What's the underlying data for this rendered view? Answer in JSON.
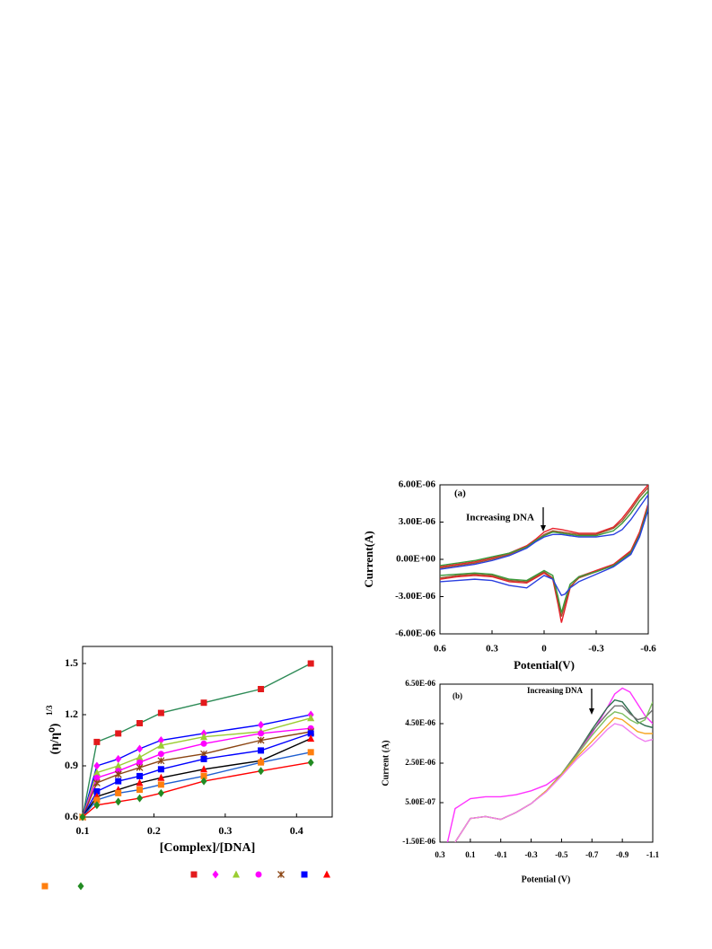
{
  "chart_data": [
    {
      "type": "line",
      "x_label": "[Complex]/[DNA]",
      "y_label": "(η/η⁰)",
      "y_label_exponent": "1/3",
      "x": [
        0.1,
        0.12,
        0.15,
        0.18,
        0.21,
        0.27,
        0.35,
        0.42
      ],
      "xlim": [
        0.1,
        0.45
      ],
      "ylim": [
        0.6,
        1.6
      ],
      "xticks": [
        0.1,
        0.2,
        0.3,
        0.4
      ],
      "yticks": [
        0.6,
        0.9,
        1.2,
        1.5
      ],
      "legend": true,
      "series": [
        {
          "marker": "square",
          "color": "#e31a1c",
          "line_color": "#2e8b57",
          "values": [
            0.6,
            1.04,
            1.09,
            1.15,
            1.21,
            1.27,
            1.35,
            1.5
          ]
        },
        {
          "marker": "diamond",
          "color": "#ff00ff",
          "line_color": "#0000ff",
          "values": [
            0.6,
            0.9,
            0.94,
            1.0,
            1.05,
            1.09,
            1.14,
            1.2
          ]
        },
        {
          "marker": "triangle",
          "color": "#9acd32",
          "line_color": "#9acd32",
          "values": [
            0.6,
            0.86,
            0.9,
            0.95,
            1.02,
            1.07,
            1.1,
            1.18
          ]
        },
        {
          "marker": "circle",
          "color": "#ff00ff",
          "line_color": "#ff00ff",
          "values": [
            0.6,
            0.83,
            0.87,
            0.92,
            0.97,
            1.03,
            1.09,
            1.12
          ]
        },
        {
          "marker": "asterisk",
          "color": "#8b4513",
          "line_color": "#8b4513",
          "values": [
            0.6,
            0.8,
            0.85,
            0.89,
            0.93,
            0.97,
            1.05,
            1.1
          ]
        },
        {
          "marker": "square",
          "color": "#0000ff",
          "line_color": "#0000ff",
          "values": [
            0.6,
            0.75,
            0.81,
            0.84,
            0.88,
            0.94,
            0.99,
            1.09
          ]
        },
        {
          "marker": "triangle",
          "color": "#ff0000",
          "line_color": "#000000",
          "values": [
            0.6,
            0.72,
            0.76,
            0.8,
            0.83,
            0.88,
            0.93,
            1.06
          ]
        },
        {
          "marker": "square",
          "color": "#ff7f0e",
          "line_color": "#1f5fd0",
          "values": [
            0.6,
            0.7,
            0.74,
            0.76,
            0.79,
            0.84,
            0.92,
            0.98
          ]
        },
        {
          "marker": "diamond",
          "color": "#228b22",
          "line_color": "#ff0000",
          "values": [
            0.6,
            0.67,
            0.69,
            0.71,
            0.74,
            0.81,
            0.87,
            0.92
          ]
        }
      ]
    },
    {
      "type": "line",
      "panel_label": "(a)",
      "annotation": "Increasing DNA",
      "x_label": "Potential(V)",
      "y_label": "Current(A)",
      "x": [
        0.6,
        0.5,
        0.4,
        0.3,
        0.2,
        0.1,
        0.05,
        0,
        -0.05,
        -0.1,
        -0.2,
        -0.3,
        -0.4,
        -0.45,
        -0.5,
        -0.55,
        -0.6,
        -0.6,
        -0.55,
        -0.5,
        -0.4,
        -0.3,
        -0.2,
        -0.15,
        -0.12,
        -0.1,
        -0.08,
        -0.05,
        0,
        0.1,
        0.2,
        0.3,
        0.4,
        0.5,
        0.6
      ],
      "xlim": [
        0.6,
        -0.6
      ],
      "ylim": [
        -6e-06,
        6e-06
      ],
      "xticks": [
        0.6,
        0.3,
        0,
        -0.3,
        -0.6
      ],
      "yticks": [
        {
          "value": -6e-06,
          "label": "-6.00E-06"
        },
        {
          "value": -3e-06,
          "label": "-3.00E-06"
        },
        {
          "value": 0,
          "label": "0.00E+00"
        },
        {
          "value": 3e-06,
          "label": "3.00E-06"
        },
        {
          "value": 6e-06,
          "label": "6.00E-06"
        }
      ],
      "series": [
        {
          "color": "#e8202a",
          "values": [
            -6e-07,
            -4e-07,
            -2e-07,
            1e-07,
            5e-07,
            1.1e-06,
            1.6e-06,
            2.2e-06,
            2.5e-06,
            2.4e-06,
            2.1e-06,
            2.1e-06,
            2.6e-06,
            3.3e-06,
            4.2e-06,
            5.2e-06,
            6e-06,
            4.5e-06,
            2.2e-06,
            7e-07,
            -4e-07,
            -9e-07,
            -1.4e-06,
            -2.3e-06,
            -4e-06,
            -5.1e-06,
            -3.6e-06,
            -1.6e-06,
            -1.1e-06,
            -1.9e-06,
            -1.8e-06,
            -1.4e-06,
            -1.3e-06,
            -1.4e-06,
            -1.6e-06
          ]
        },
        {
          "color": "#a0522d",
          "values": [
            -7e-07,
            -5e-07,
            -3e-07,
            0,
            4e-07,
            1e-06,
            1.5e-06,
            2e-06,
            2.3e-06,
            2.2e-06,
            2e-06,
            2e-06,
            2.5e-06,
            3.1e-06,
            4e-06,
            5e-06,
            5.8e-06,
            4.3e-06,
            2e-06,
            6e-07,
            -5e-07,
            -1e-06,
            -1.5e-06,
            -2.2e-06,
            -3.6e-06,
            -4.6e-06,
            -3.3e-06,
            -1.5e-06,
            -1e-06,
            -1.8e-06,
            -1.7e-06,
            -1.3e-06,
            -1.2e-06,
            -1.3e-06,
            -1.5e-06
          ]
        },
        {
          "color": "#3a9a3a",
          "values": [
            -5e-07,
            -3e-07,
            -1e-07,
            2e-07,
            5e-07,
            1e-06,
            1.5e-06,
            1.9e-06,
            2.2e-06,
            2.1e-06,
            1.9e-06,
            1.9e-06,
            2.3e-06,
            2.9e-06,
            3.7e-06,
            4.7e-06,
            5.5e-06,
            4.2e-06,
            1.9e-06,
            5e-07,
            -5e-07,
            -1e-06,
            -1.4e-06,
            -2e-06,
            -3.3e-06,
            -4.3e-06,
            -3e-06,
            -1.3e-06,
            -9e-07,
            -1.7e-06,
            -1.6e-06,
            -1.2e-06,
            -1.1e-06,
            -1.2e-06,
            -1.3e-06
          ]
        },
        {
          "color": "#2a3fe0",
          "values": [
            -8e-07,
            -6e-07,
            -4e-07,
            -1e-07,
            3e-07,
            9e-07,
            1.4e-06,
            1.8e-06,
            2e-06,
            2e-06,
            1.8e-06,
            1.8e-06,
            2e-06,
            2.4e-06,
            3.2e-06,
            4.2e-06,
            5.2e-06,
            4e-06,
            1.8e-06,
            4e-07,
            -6e-07,
            -1.2e-06,
            -1.8e-06,
            -2.3e-06,
            -2.8e-06,
            -2.9e-06,
            -2.4e-06,
            -1.6e-06,
            -1.3e-06,
            -2.3e-06,
            -2.1e-06,
            -1.7e-06,
            -1.6e-06,
            -1.7e-06,
            -1.8e-06
          ]
        }
      ]
    },
    {
      "type": "line",
      "panel_label": "(b)",
      "annotation": "Increasing DNA",
      "x_label": "Potential (V)",
      "y_label": "Current (A)",
      "x": [
        0.25,
        0.2,
        0.1,
        0,
        -0.1,
        -0.2,
        -0.3,
        -0.4,
        -0.5,
        -0.6,
        -0.7,
        -0.8,
        -0.85,
        -0.9,
        -0.95,
        -1.0,
        -1.05,
        -1.1
      ],
      "xlim": [
        0.3,
        -1.1
      ],
      "ylim": [
        -1.5e-06,
        6.5e-06
      ],
      "xticks": [
        0.3,
        0.1,
        -0.1,
        -0.3,
        -0.5,
        -0.7,
        -0.9,
        -1.1
      ],
      "yticks": [
        {
          "value": -1.5e-06,
          "label": "-1.50E-06"
        },
        {
          "value": 5e-07,
          "label": "5.00E-07"
        },
        {
          "value": 2.5e-06,
          "label": "2.50E-06"
        },
        {
          "value": 4.5e-06,
          "label": "4.50E-06"
        },
        {
          "value": 6.5e-06,
          "label": "6.50E-06"
        }
      ],
      "series": [
        {
          "color": "#ff33ff",
          "values": [
            -1.5e-06,
            2e-07,
            7e-07,
            8e-07,
            8e-07,
            9e-07,
            1.1e-06,
            1.4e-06,
            1.95e-06,
            2.9e-06,
            4e-06,
            5.3e-06,
            6e-06,
            6.3e-06,
            6.1e-06,
            5.5e-06,
            4.9e-06,
            4.5e-06
          ]
        },
        {
          "color": "#2f6f4f",
          "values": [
            null,
            -1.5e-06,
            -3e-07,
            -2e-07,
            -3.5e-07,
            0,
            4.5e-07,
            1.1e-06,
            1.95e-06,
            3e-06,
            4.2e-06,
            5.3e-06,
            5.7e-06,
            5.6e-06,
            5.1e-06,
            4.6e-06,
            4.4e-06,
            4.3e-06
          ]
        },
        {
          "color": "#707070",
          "values": [
            null,
            -1.5e-06,
            -3e-07,
            -2e-07,
            -3.5e-07,
            0,
            4.5e-07,
            1.1e-06,
            1.95e-06,
            3e-06,
            4.1e-06,
            5e-06,
            5.4e-06,
            5.4e-06,
            5e-06,
            4.7e-06,
            4.8e-06,
            5.2e-06
          ]
        },
        {
          "color": "#7fbf5f",
          "values": [
            null,
            -1.5e-06,
            -3e-07,
            -2e-07,
            -3.5e-07,
            0,
            4.5e-07,
            1.1e-06,
            1.95e-06,
            2.9e-06,
            3.9e-06,
            4.8e-06,
            5.1e-06,
            5e-06,
            4.7e-06,
            4.5e-06,
            4.7e-06,
            5.6e-06
          ]
        },
        {
          "color": "#f5a623",
          "values": [
            null,
            -1.5e-06,
            -3e-07,
            -2e-07,
            -3.5e-07,
            0,
            4.5e-07,
            1.1e-06,
            1.9e-06,
            2.8e-06,
            3.6e-06,
            4.4e-06,
            4.8e-06,
            4.7e-06,
            4.4e-06,
            4.1e-06,
            4e-06,
            4e-06
          ]
        },
        {
          "color": "#f080f0",
          "values": [
            null,
            -1.5e-06,
            -3e-07,
            -2e-07,
            -3.5e-07,
            0,
            4.5e-07,
            1.05e-06,
            1.85e-06,
            2.7e-06,
            3.4e-06,
            4.2e-06,
            4.5e-06,
            4.4e-06,
            4.1e-06,
            3.8e-06,
            3.6e-06,
            3.7e-06
          ]
        }
      ]
    }
  ]
}
